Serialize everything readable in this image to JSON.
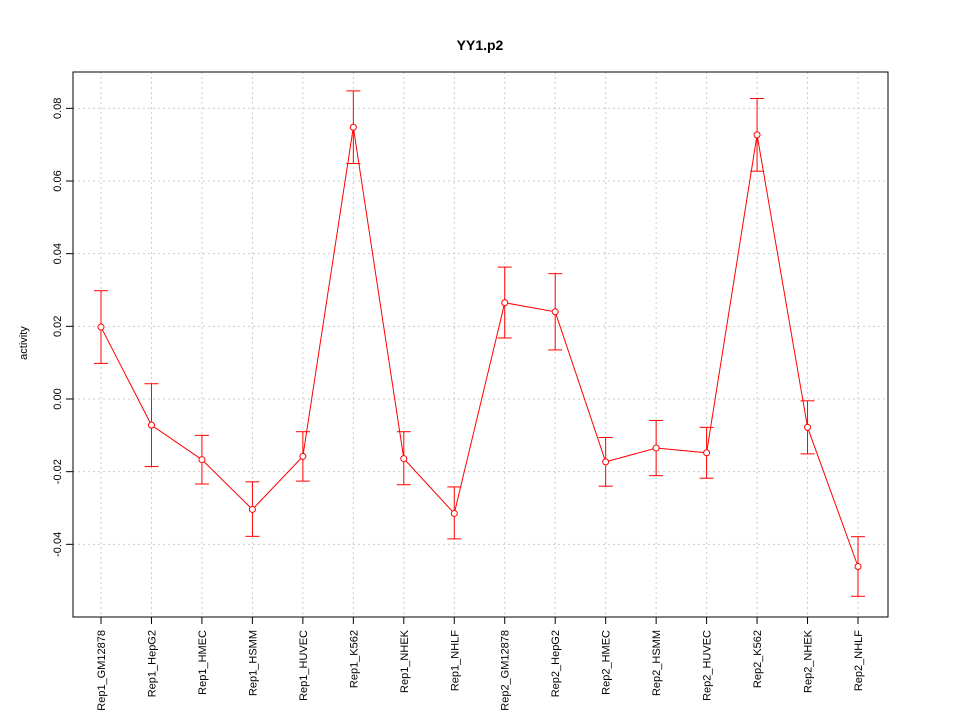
{
  "chart_data": {
    "type": "line",
    "title": "YY1.p2",
    "xlabel": "",
    "ylabel": "activity",
    "ylim": [
      -0.06,
      0.09
    ],
    "yticks": [
      -0.04,
      -0.02,
      0.0,
      0.02,
      0.04,
      0.06,
      0.08
    ],
    "ytick_labels": [
      "-0.04",
      "-0.02",
      "0.00",
      "0.02",
      "0.04",
      "0.06",
      "0.08"
    ],
    "grid": true,
    "series_color": "#ff0000",
    "grid_color": "#cccccc",
    "categories": [
      "Rep1_GM12878",
      "Rep1_HepG2",
      "Rep1_HMEC",
      "Rep1_HSMM",
      "Rep1_HUVEC",
      "Rep1_K562",
      "Rep1_NHEK",
      "Rep1_NHLF",
      "Rep2_GM12878",
      "Rep2_HepG2",
      "Rep2_HMEC",
      "Rep2_HSMM",
      "Rep2_HUVEC",
      "Rep2_K562",
      "Rep2_NHEK",
      "Rep2_NHLF"
    ],
    "values": [
      0.0198,
      -0.0072,
      -0.0167,
      -0.0304,
      -0.0158,
      0.0748,
      -0.0164,
      -0.0315,
      0.0265,
      0.024,
      -0.0173,
      -0.0135,
      -0.0148,
      0.0727,
      -0.0078,
      -0.0461
    ],
    "error_low": [
      0.0098,
      -0.0186,
      -0.0234,
      -0.0378,
      -0.0226,
      0.0648,
      -0.0236,
      -0.0385,
      0.0168,
      0.0135,
      -0.024,
      -0.0211,
      -0.0218,
      0.0627,
      -0.0151,
      -0.0543
    ],
    "error_high": [
      0.0298,
      0.0042,
      -0.01,
      -0.0228,
      -0.009,
      0.0848,
      -0.009,
      -0.0242,
      0.0363,
      0.0345,
      -0.0106,
      -0.0059,
      -0.0078,
      0.0827,
      -0.0005,
      -0.0379
    ]
  }
}
